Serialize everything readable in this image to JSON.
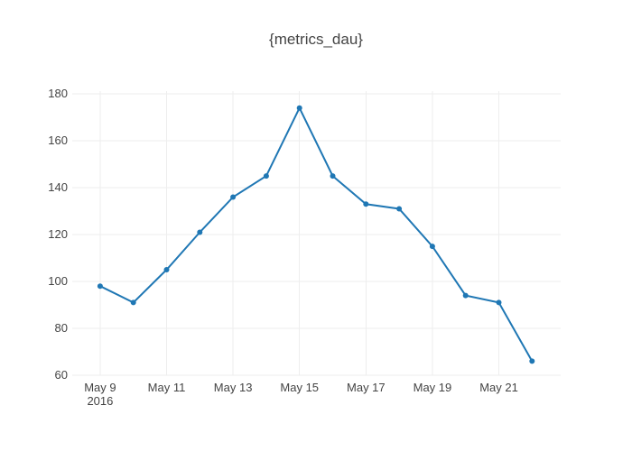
{
  "chart_data": {
    "type": "line",
    "title": "{metrics_dau}",
    "x": [
      "2016-05-09",
      "2016-05-10",
      "2016-05-11",
      "2016-05-12",
      "2016-05-13",
      "2016-05-14",
      "2016-05-15",
      "2016-05-16",
      "2016-05-17",
      "2016-05-18",
      "2016-05-19",
      "2016-05-20",
      "2016-05-21",
      "2016-05-22"
    ],
    "values": [
      98,
      91,
      105,
      121,
      136,
      145,
      174,
      145,
      133,
      131,
      115,
      94,
      91,
      66
    ],
    "xlabel": "",
    "ylabel": "",
    "ylim": [
      60,
      181.2
    ],
    "xlim_index": [
      -0.84,
      13.86
    ],
    "y_ticks": [
      60,
      80,
      100,
      120,
      140,
      160,
      180
    ],
    "x_ticks": [
      {
        "index": 0,
        "label": "May 9",
        "sublabel": "2016"
      },
      {
        "index": 2,
        "label": "May 11",
        "sublabel": ""
      },
      {
        "index": 4,
        "label": "May 13",
        "sublabel": ""
      },
      {
        "index": 6,
        "label": "May 15",
        "sublabel": ""
      },
      {
        "index": 8,
        "label": "May 17",
        "sublabel": ""
      },
      {
        "index": 10,
        "label": "May 19",
        "sublabel": ""
      },
      {
        "index": 12,
        "label": "May 21",
        "sublabel": ""
      }
    ],
    "grid": true,
    "legend_visible": false,
    "marker": "circle",
    "marker_size": 6,
    "line_width": 2,
    "colors": {
      "line": "#1f77b4",
      "grid": "#eeeeee",
      "text": "#444444",
      "background": "#ffffff"
    }
  }
}
